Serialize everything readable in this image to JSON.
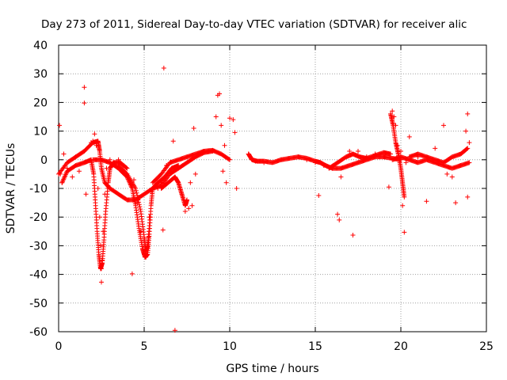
{
  "chart_data": {
    "type": "scatter",
    "title": "Day 273 of 2011, Sidereal Day-to-day VTEC variation (SDTVAR) for receiver alic",
    "xlabel": "GPS time / hours",
    "ylabel": "SDTVAR / TECUs",
    "xlim": [
      0,
      25
    ],
    "ylim": [
      -60,
      40
    ],
    "xticks": [
      0,
      5,
      10,
      15,
      20,
      25
    ],
    "yticks": [
      -60,
      -50,
      -40,
      -30,
      -20,
      -10,
      0,
      10,
      20,
      30,
      40
    ],
    "grid": true,
    "marker": "+",
    "series": [
      {
        "name": "SDTVAR",
        "color": "#ff0000",
        "points": [
          [
            0.05,
            12
          ],
          [
            0.1,
            -5
          ],
          [
            0.2,
            -8
          ],
          [
            0.3,
            2
          ],
          [
            0.5,
            -3
          ],
          [
            0.8,
            -6
          ],
          [
            1.0,
            1
          ],
          [
            1.2,
            -4
          ],
          [
            1.5,
            25.3
          ],
          [
            1.5,
            19.8
          ],
          [
            1.6,
            -12
          ],
          [
            1.9,
            6
          ],
          [
            2.0,
            6.5
          ],
          [
            2.1,
            9
          ],
          [
            2.2,
            5
          ],
          [
            2.3,
            -10
          ],
          [
            2.4,
            -20
          ],
          [
            2.45,
            -30
          ],
          [
            2.5,
            -38
          ],
          [
            2.5,
            -42.7
          ],
          [
            2.55,
            -35
          ],
          [
            2.6,
            -25
          ],
          [
            2.7,
            -12
          ],
          [
            2.8,
            -3
          ],
          [
            3.0,
            0
          ],
          [
            3.5,
            0
          ],
          [
            4.0,
            -5
          ],
          [
            4.3,
            -39.8
          ],
          [
            4.4,
            -7
          ],
          [
            4.6,
            -15
          ],
          [
            4.8,
            -25
          ],
          [
            5.0,
            -33
          ],
          [
            5.1,
            -34
          ],
          [
            5.2,
            -30
          ],
          [
            5.3,
            -20
          ],
          [
            5.4,
            -11
          ],
          [
            5.5,
            -10
          ],
          [
            5.8,
            -10
          ],
          [
            6.0,
            -8
          ],
          [
            6.1,
            -24.5
          ],
          [
            6.15,
            32
          ],
          [
            6.3,
            -2
          ],
          [
            6.7,
            6.5
          ],
          [
            6.8,
            -59.5
          ],
          [
            7.0,
            -3
          ],
          [
            7.2,
            -12
          ],
          [
            7.4,
            -18
          ],
          [
            7.6,
            -17
          ],
          [
            7.7,
            -8
          ],
          [
            7.8,
            -16
          ],
          [
            7.9,
            11
          ],
          [
            8.0,
            -5
          ],
          [
            8.5,
            3
          ],
          [
            9.0,
            3.2
          ],
          [
            9.2,
            15
          ],
          [
            9.3,
            22.5
          ],
          [
            9.4,
            23
          ],
          [
            9.5,
            12
          ],
          [
            9.6,
            -4
          ],
          [
            9.7,
            5
          ],
          [
            9.8,
            -8
          ],
          [
            10.0,
            14.5
          ],
          [
            10.2,
            14
          ],
          [
            10.3,
            9.5
          ],
          [
            10.4,
            -10
          ],
          [
            11.1,
            2
          ],
          [
            11.5,
            -0.5
          ],
          [
            12,
            -1
          ],
          [
            13,
            0
          ],
          [
            14,
            1
          ],
          [
            14.5,
            0
          ],
          [
            15.0,
            -1
          ],
          [
            15.2,
            -12.5
          ],
          [
            15.5,
            -2
          ],
          [
            16.0,
            -3
          ],
          [
            16.3,
            -19
          ],
          [
            16.4,
            -21
          ],
          [
            16.5,
            -6
          ],
          [
            17.0,
            3
          ],
          [
            17.2,
            -26.3
          ],
          [
            17.5,
            3
          ],
          [
            18.0,
            1
          ],
          [
            18.5,
            2
          ],
          [
            19.0,
            1
          ],
          [
            19.3,
            -9.5
          ],
          [
            19.5,
            17
          ],
          [
            19.6,
            15
          ],
          [
            19.7,
            12
          ],
          [
            19.8,
            5
          ],
          [
            20.0,
            3
          ],
          [
            20.1,
            -16
          ],
          [
            20.2,
            -25.3
          ],
          [
            20.3,
            -1
          ],
          [
            20.5,
            8
          ],
          [
            21.0,
            1
          ],
          [
            21.5,
            -14.5
          ],
          [
            22.0,
            4
          ],
          [
            22.5,
            12
          ],
          [
            22.7,
            -5
          ],
          [
            23.0,
            -6
          ],
          [
            23.2,
            -15
          ],
          [
            23.5,
            -2
          ],
          [
            23.8,
            10
          ],
          [
            23.9,
            16
          ],
          [
            23.9,
            -13
          ],
          [
            24.0,
            6
          ]
        ],
        "tracks": [
          [
            [
              0.0,
              -5
            ],
            [
              0.5,
              -1
            ],
            [
              1.0,
              1
            ],
            [
              1.5,
              3
            ],
            [
              2.0,
              6
            ],
            [
              2.3,
              6.5
            ],
            [
              2.4,
              3
            ],
            [
              2.5,
              -3
            ],
            [
              2.7,
              -8
            ],
            [
              3.0,
              -10
            ],
            [
              3.5,
              -12
            ],
            [
              4.0,
              -14
            ],
            [
              4.5,
              -14
            ],
            [
              5.0,
              -12
            ],
            [
              5.5,
              -10
            ],
            [
              6.0,
              -9
            ],
            [
              6.5,
              -5
            ],
            [
              7.0,
              -3
            ],
            [
              7.5,
              -1
            ],
            [
              8.0,
              1
            ],
            [
              8.5,
              2.5
            ],
            [
              9.0,
              3
            ]
          ],
          [
            [
              0.2,
              -8
            ],
            [
              0.5,
              -4
            ],
            [
              1.0,
              -2
            ],
            [
              1.5,
              -1
            ],
            [
              1.9,
              0
            ],
            [
              2.05,
              -5
            ],
            [
              2.15,
              -15
            ],
            [
              2.25,
              -25
            ],
            [
              2.35,
              -33
            ],
            [
              2.45,
              -38
            ],
            [
              2.55,
              -36
            ],
            [
              2.65,
              -28
            ],
            [
              2.75,
              -18
            ],
            [
              2.9,
              -8
            ],
            [
              3.0,
              -3
            ],
            [
              3.2,
              -1
            ],
            [
              3.6,
              -1
            ],
            [
              4.0,
              -3
            ]
          ],
          [
            [
              2.0,
              0
            ],
            [
              2.5,
              0
            ],
            [
              3.0,
              -1
            ],
            [
              3.5,
              -3
            ],
            [
              4.0,
              -6
            ],
            [
              4.3,
              -10
            ],
            [
              4.5,
              -16
            ],
            [
              4.7,
              -24
            ],
            [
              4.9,
              -31
            ],
            [
              5.05,
              -34
            ],
            [
              5.2,
              -33
            ],
            [
              5.3,
              -26
            ],
            [
              5.4,
              -16
            ],
            [
              5.5,
              -10
            ],
            [
              5.8,
              -8
            ],
            [
              6.2,
              -6
            ],
            [
              6.6,
              -3
            ],
            [
              7.0,
              -2
            ]
          ],
          [
            [
              3.5,
              -2
            ],
            [
              4.0,
              -5
            ],
            [
              4.5,
              -10
            ],
            [
              4.8,
              -18
            ],
            [
              5.0,
              -27
            ],
            [
              5.1,
              -32
            ],
            [
              5.2,
              -30
            ],
            [
              5.35,
              -20
            ]
          ],
          [
            [
              6.0,
              -10
            ],
            [
              6.4,
              -8
            ],
            [
              6.8,
              -6
            ],
            [
              7.0,
              -8
            ],
            [
              7.2,
              -12
            ],
            [
              7.4,
              -16
            ],
            [
              7.5,
              -14
            ]
          ],
          [
            [
              5.5,
              -8
            ],
            [
              6.0,
              -5
            ],
            [
              6.5,
              -1
            ],
            [
              7.0,
              0
            ],
            [
              7.5,
              1
            ],
            [
              8.0,
              2
            ],
            [
              8.5,
              3
            ],
            [
              9.0,
              3.3
            ],
            [
              9.5,
              2
            ],
            [
              10.0,
              0
            ]
          ],
          [
            [
              11.1,
              2
            ],
            [
              11.3,
              0
            ],
            [
              11.6,
              -0.5
            ],
            [
              12.0,
              -0.5
            ],
            [
              12.5,
              -1
            ],
            [
              13.0,
              0
            ],
            [
              13.5,
              0.5
            ],
            [
              14.0,
              1
            ],
            [
              14.5,
              0.5
            ],
            [
              15.0,
              -0.5
            ],
            [
              15.3,
              -1
            ],
            [
              15.6,
              -2
            ],
            [
              16.0,
              -3
            ],
            [
              16.5,
              -3
            ],
            [
              17.0,
              -2
            ],
            [
              17.5,
              -1
            ],
            [
              18.0,
              0
            ],
            [
              18.5,
              1
            ],
            [
              19.0,
              1
            ],
            [
              19.5,
              0.5
            ],
            [
              20.0,
              0
            ]
          ],
          [
            [
              15.8,
              -3
            ],
            [
              16.3,
              -1
            ],
            [
              16.8,
              1
            ],
            [
              17.2,
              2
            ],
            [
              17.6,
              1
            ],
            [
              18.0,
              0.5
            ],
            [
              18.5,
              1.5
            ],
            [
              19.0,
              2.5
            ],
            [
              19.4,
              2
            ]
          ],
          [
            [
              19.5,
              0
            ],
            [
              20.0,
              1
            ],
            [
              20.5,
              0
            ],
            [
              21.0,
              -1
            ],
            [
              21.5,
              0
            ],
            [
              22.0,
              -1
            ],
            [
              22.5,
              -2
            ],
            [
              23.0,
              -3
            ],
            [
              23.5,
              -2
            ],
            [
              24.0,
              -1
            ]
          ],
          [
            [
              19.4,
              16
            ],
            [
              19.55,
              12
            ],
            [
              19.7,
              6
            ],
            [
              19.85,
              2
            ],
            [
              20.0,
              -3
            ],
            [
              20.1,
              -8
            ],
            [
              20.2,
              -13
            ]
          ],
          [
            [
              20.5,
              1
            ],
            [
              21.0,
              2
            ],
            [
              21.5,
              1
            ],
            [
              22.0,
              0
            ],
            [
              22.5,
              -1
            ],
            [
              23.0,
              1
            ],
            [
              23.5,
              2
            ],
            [
              23.9,
              4
            ]
          ]
        ]
      }
    ]
  }
}
